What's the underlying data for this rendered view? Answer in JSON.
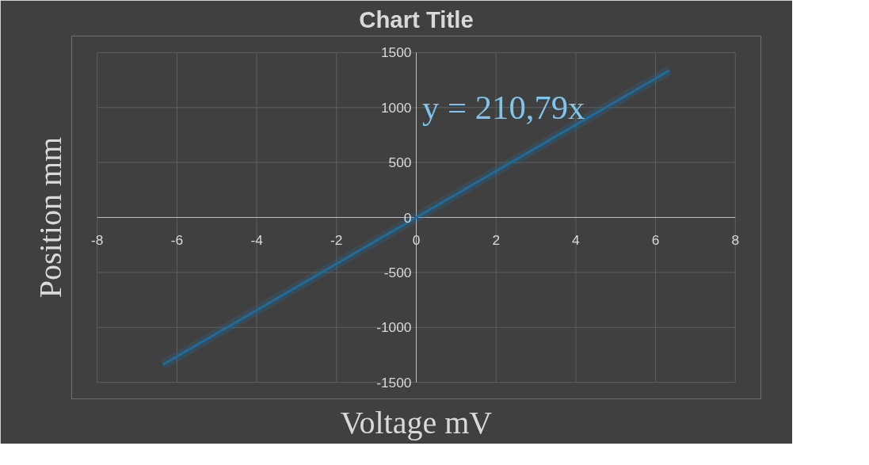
{
  "chart_data": {
    "type": "line",
    "title": "Chart Title",
    "xlabel": "Voltage mV",
    "ylabel": "Position mm",
    "annotations": [
      "y = 210,79x"
    ],
    "x": [
      -6.35,
      0,
      6.35
    ],
    "series": [
      {
        "color": "#1f6b99",
        "values": [
          -1338,
          0,
          1338
        ]
      }
    ],
    "xlim": [
      -8,
      8
    ],
    "xticks": [
      -8,
      -6,
      -4,
      -2,
      0,
      2,
      4,
      6,
      8
    ],
    "ylim": [
      -1500,
      1500
    ],
    "yticks": [
      -1500,
      -1000,
      -500,
      0,
      500,
      1000,
      1500
    ],
    "grid": true,
    "marker": "none",
    "line_style": "solid"
  }
}
